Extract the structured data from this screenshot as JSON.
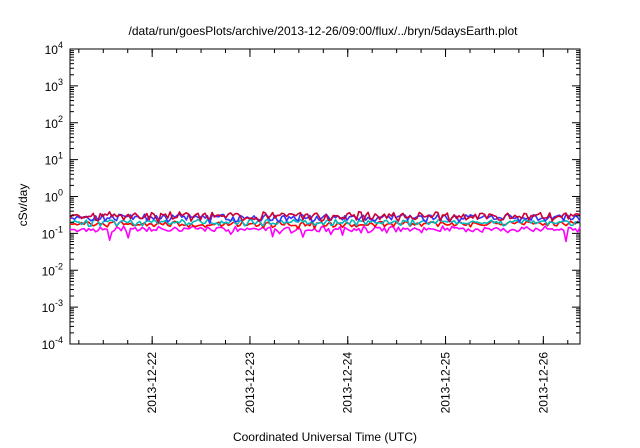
{
  "chart_data": {
    "type": "line",
    "title": "/data/run/goesPlots/archive/2013-12-26/09:00/flux/../bryn/5daysEarth.plot",
    "xlabel": "Coordinated Universal Time (UTC)",
    "ylabel": "cSv/day",
    "yscale": "log",
    "ylim": [
      0.0001,
      10000
    ],
    "xlim": [
      "2013-12-21 03:50",
      "2013-12-26 09:00"
    ],
    "x_ticks": [
      "2013-12-22",
      "2013-12-23",
      "2013-12-24",
      "2013-12-25",
      "2013-12-26"
    ],
    "y_ticks": [
      {
        "value": 0.0001,
        "base": "10",
        "exp": "-4"
      },
      {
        "value": 0.001,
        "base": "10",
        "exp": "-3"
      },
      {
        "value": 0.01,
        "base": "10",
        "exp": "-2"
      },
      {
        "value": 0.1,
        "base": "10",
        "exp": "-1"
      },
      {
        "value": 1,
        "base": "10",
        "exp": "0"
      },
      {
        "value": 10,
        "base": "10",
        "exp": "1"
      },
      {
        "value": 100,
        "base": "10",
        "exp": "2"
      },
      {
        "value": 1000,
        "base": "10",
        "exp": "3"
      },
      {
        "value": 10000,
        "base": "10",
        "exp": "4"
      }
    ],
    "grid": false,
    "legend": "none",
    "series": [
      {
        "color": "#ff00ff",
        "level": 0.13,
        "spread": 0.1,
        "spike_depth": 0.35
      },
      {
        "color": "#ff0000",
        "level": 0.18,
        "spread": 0.09,
        "spike_depth": 0.12
      },
      {
        "color": "#00bbbb",
        "level": 0.2,
        "spread": 0.1,
        "spike_depth": 0.1
      },
      {
        "color": "#3333ff",
        "level": 0.27,
        "spread": 0.12,
        "spike_depth": 0.12
      },
      {
        "color": "#cc0033",
        "level": 0.3,
        "spread": 0.14,
        "spike_depth": 0.1
      }
    ]
  }
}
